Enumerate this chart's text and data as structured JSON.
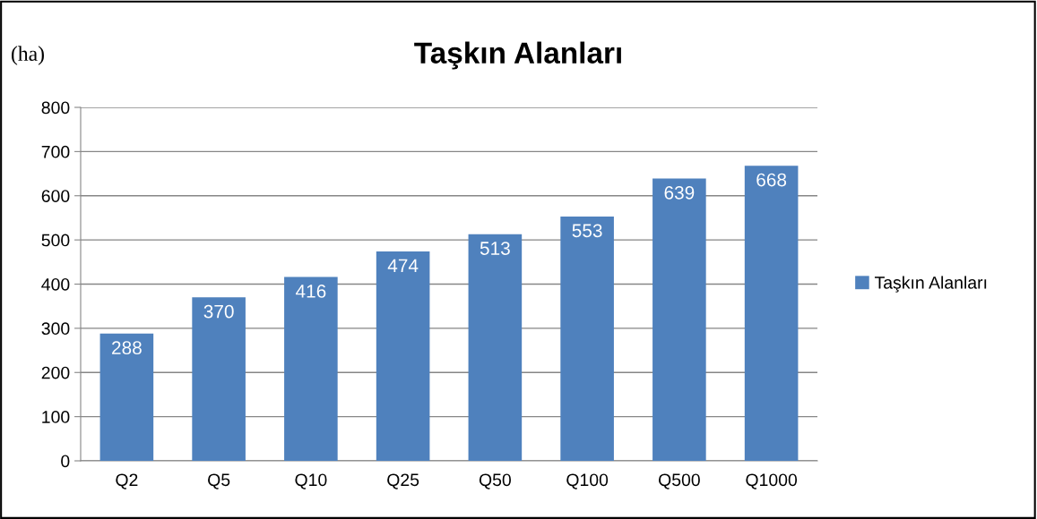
{
  "chart_data": {
    "type": "bar",
    "title": "Taşkın Alanları",
    "ylabel": "(ha)",
    "categories": [
      "Q2",
      "Q5",
      "Q10",
      "Q25",
      "Q50",
      "Q100",
      "Q500",
      "Q1000"
    ],
    "series": [
      {
        "name": "Taşkın Alanları",
        "color": "#4f81bd",
        "values": [
          288,
          370,
          416,
          474,
          513,
          553,
          639,
          668
        ]
      }
    ],
    "ylim": [
      0,
      800
    ],
    "yticks": [
      0,
      100,
      200,
      300,
      400,
      500,
      600,
      700,
      800
    ],
    "grid": "y",
    "legend": "right",
    "data_labels": true
  }
}
